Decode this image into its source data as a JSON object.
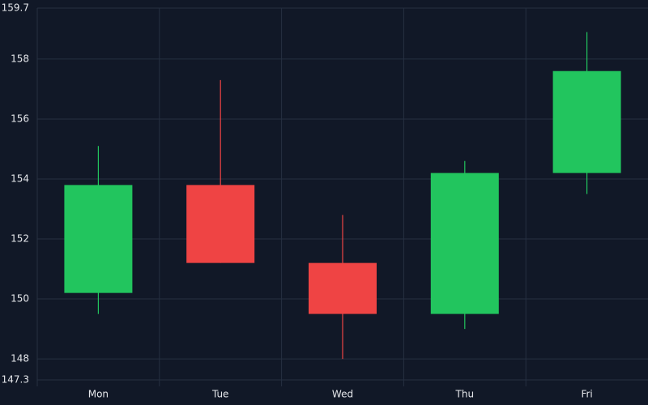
{
  "chart_data": {
    "type": "candlestick",
    "categories": [
      "Mon",
      "Tue",
      "Wed",
      "Thu",
      "Fri"
    ],
    "open": [
      150.2,
      153.8,
      151.2,
      149.5,
      154.2
    ],
    "high": [
      155.1,
      157.3,
      152.8,
      154.6,
      158.9
    ],
    "low": [
      149.5,
      151.2,
      148.0,
      149.0,
      153.5
    ],
    "close": [
      153.8,
      151.2,
      149.5,
      154.2,
      157.6
    ],
    "up_color": "#22c55e",
    "down_color": "#ef4444",
    "ylim": [
      147.3,
      159.7
    ],
    "yticks": [
      147.3,
      148,
      150,
      152,
      154,
      156,
      158,
      159.7
    ],
    "grid": true
  }
}
